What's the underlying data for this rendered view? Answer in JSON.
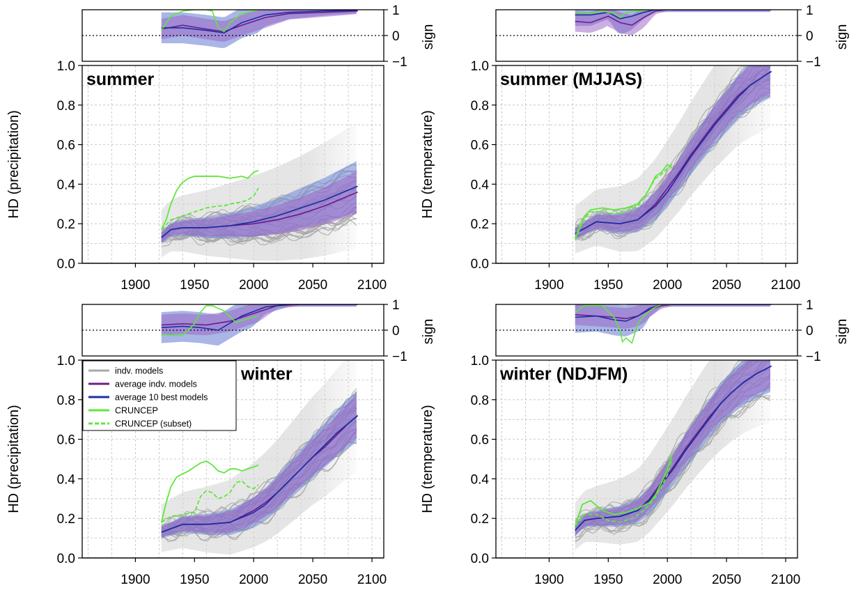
{
  "colors": {
    "indv_models": "#a8a8a8",
    "average_indv_models": "#6e1b8c",
    "average_10_best_models": "#1c2fa0",
    "cruncep": "#5ee83b",
    "band_all": "#9a5fc4",
    "band_best": "#6f86d6",
    "cloud": "#d3d3d3",
    "grid": "#bdbdbd"
  },
  "legend": {
    "items": [
      {
        "label": "indv. models",
        "series": "indv_models",
        "style": "solid"
      },
      {
        "label": "average indv. models",
        "series": "average_indv_models",
        "style": "solid"
      },
      {
        "label": "average 10 best models",
        "series": "average_10_best_models",
        "style": "solid"
      },
      {
        "label": "CRUNCEP",
        "series": "cruncep",
        "style": "solid"
      },
      {
        "label": "CRUNCEP (subset)",
        "series": "cruncep",
        "style": "dashed"
      }
    ]
  },
  "chart_data": [
    {
      "id": "summer-precipitation",
      "type": "line",
      "title": "summer",
      "ylabel": "HD (precipitation)",
      "sign_ylabel": "sign",
      "xlim": [
        1855,
        2110
      ],
      "ylim": [
        0,
        1
      ],
      "x_ticks": [
        1900,
        1950,
        2000,
        2050,
        2100
      ],
      "y_ticks": [
        0.0,
        0.2,
        0.4,
        0.6,
        0.8,
        1.0
      ],
      "y_tick_labels": [
        "0.0",
        "0.2",
        "0.4",
        "0.6",
        "0.8",
        "1.0"
      ],
      "sign_ylim": [
        -1,
        1
      ],
      "sign_ticks": [
        -1,
        0,
        1
      ],
      "sign_tick_labels": [
        "−1",
        "0",
        "1"
      ],
      "grid": true,
      "series": [
        {
          "key": "average_indv_models",
          "x": [
            1922,
            1930,
            1940,
            1960,
            1980,
            2000,
            2020,
            2040,
            2060,
            2088
          ],
          "y": [
            0.13,
            0.17,
            0.18,
            0.18,
            0.19,
            0.2,
            0.22,
            0.25,
            0.29,
            0.36
          ]
        },
        {
          "key": "average_10_best_models",
          "x": [
            1922,
            1930,
            1940,
            1960,
            1980,
            2000,
            2020,
            2040,
            2060,
            2088
          ],
          "y": [
            0.13,
            0.17,
            0.18,
            0.18,
            0.19,
            0.21,
            0.24,
            0.28,
            0.32,
            0.39
          ]
        },
        {
          "key": "cruncep",
          "x": [
            1922,
            1926,
            1930,
            1935,
            1940,
            1945,
            1950,
            1960,
            1970,
            1980,
            1990,
            1995,
            2000,
            2004
          ],
          "y": [
            0.17,
            0.22,
            0.3,
            0.37,
            0.41,
            0.43,
            0.44,
            0.44,
            0.44,
            0.43,
            0.44,
            0.43,
            0.46,
            0.47
          ]
        },
        {
          "key": "cruncep_subset",
          "x": [
            1922,
            1930,
            1940,
            1950,
            1960,
            1970,
            1975,
            1980,
            1990,
            1995,
            2000,
            2004
          ],
          "y": [
            0.17,
            0.22,
            0.24,
            0.26,
            0.28,
            0.29,
            0.29,
            0.3,
            0.31,
            0.32,
            0.34,
            0.38
          ]
        }
      ],
      "sign_series": [
        {
          "key": "average_indv_models",
          "x": [
            1922,
            1940,
            1960,
            1975,
            1990,
            2010,
            2030,
            2060,
            2088
          ],
          "y": [
            0.25,
            0.4,
            0.25,
            0.15,
            0.4,
            0.7,
            0.85,
            0.9,
            0.95
          ]
        },
        {
          "key": "average_10_best_models",
          "x": [
            1922,
            1940,
            1960,
            1975,
            1990,
            2010,
            2030,
            2060,
            2088
          ],
          "y": [
            0.3,
            0.3,
            0.2,
            0.1,
            0.5,
            0.8,
            0.9,
            0.95,
            0.98
          ]
        },
        {
          "key": "cruncep",
          "x": [
            1922,
            1930,
            1940,
            1950,
            1960,
            1965,
            1970,
            1975,
            1980,
            1990,
            2000,
            2004
          ],
          "y": [
            0.2,
            0.75,
            0.95,
            1.0,
            1.0,
            0.95,
            0.3,
            0.15,
            0.5,
            0.85,
            0.95,
            1.0
          ]
        }
      ]
    },
    {
      "id": "summer-temperature",
      "type": "line",
      "title": "summer (MJJAS)",
      "ylabel": "HD (temperature)",
      "sign_ylabel": "sign",
      "xlim": [
        1855,
        2110
      ],
      "ylim": [
        0,
        1
      ],
      "x_ticks": [
        1900,
        1950,
        2000,
        2050,
        2100
      ],
      "y_ticks": [
        0.0,
        0.2,
        0.4,
        0.6,
        0.8,
        1.0
      ],
      "y_tick_labels": [
        "0.0",
        "0.2",
        "0.4",
        "0.6",
        "0.8",
        "1.0"
      ],
      "sign_ylim": [
        -1,
        1
      ],
      "sign_ticks": [
        -1,
        0,
        1
      ],
      "sign_tick_labels": [
        "−1",
        "0",
        "1"
      ],
      "grid": true,
      "series": [
        {
          "key": "average_indv_models",
          "x": [
            1922,
            1940,
            1960,
            1975,
            1990,
            2000,
            2010,
            2020,
            2030,
            2040,
            2050,
            2060,
            2070,
            2080,
            2088
          ],
          "y": [
            0.15,
            0.21,
            0.2,
            0.22,
            0.3,
            0.38,
            0.46,
            0.55,
            0.63,
            0.71,
            0.78,
            0.85,
            0.9,
            0.94,
            0.97
          ]
        },
        {
          "key": "average_10_best_models",
          "x": [
            1922,
            1940,
            1960,
            1975,
            1990,
            2000,
            2010,
            2020,
            2030,
            2040,
            2050,
            2060,
            2070,
            2080,
            2088
          ],
          "y": [
            0.15,
            0.21,
            0.2,
            0.22,
            0.29,
            0.36,
            0.45,
            0.54,
            0.62,
            0.7,
            0.77,
            0.84,
            0.9,
            0.94,
            0.97
          ]
        },
        {
          "key": "cruncep",
          "x": [
            1922,
            1930,
            1935,
            1945,
            1955,
            1965,
            1975,
            1980,
            1985,
            1990,
            1995,
            2000,
            2004
          ],
          "y": [
            0.13,
            0.24,
            0.27,
            0.28,
            0.27,
            0.28,
            0.3,
            0.33,
            0.38,
            0.44,
            0.46,
            0.5,
            0.48
          ]
        },
        {
          "key": "cruncep_subset",
          "x": [
            1922,
            1930,
            1935,
            1945,
            1955,
            1965,
            1975,
            1980,
            1985,
            1990,
            1995,
            2000,
            2004
          ],
          "y": [
            0.12,
            0.23,
            0.26,
            0.26,
            0.25,
            0.26,
            0.29,
            0.33,
            0.38,
            0.43,
            0.45,
            0.48,
            0.5
          ]
        }
      ],
      "sign_series": [
        {
          "key": "average_indv_models",
          "x": [
            1922,
            1935,
            1950,
            1960,
            1970,
            1980,
            1990,
            2000,
            2030,
            2088
          ],
          "y": [
            0.55,
            0.5,
            0.75,
            0.5,
            0.4,
            0.7,
            0.95,
            1.0,
            1.0,
            1.0
          ]
        },
        {
          "key": "average_10_best_models",
          "x": [
            1922,
            1935,
            1950,
            1960,
            1970,
            1980,
            1990,
            2000,
            2030,
            2088
          ],
          "y": [
            0.8,
            0.8,
            0.9,
            0.65,
            0.75,
            0.9,
            1.0,
            1.0,
            1.0,
            1.0
          ]
        },
        {
          "key": "cruncep",
          "x": [
            1922,
            1935,
            1945,
            1955,
            1960,
            1965,
            1975,
            1985,
            2000,
            2004
          ],
          "y": [
            0.9,
            0.85,
            0.95,
            0.85,
            0.7,
            0.9,
            0.95,
            1.0,
            1.0,
            1.0
          ]
        }
      ]
    },
    {
      "id": "winter-precipitation",
      "type": "line",
      "title": "winter",
      "ylabel": "HD (precipitation)",
      "sign_ylabel": "sign",
      "xlim": [
        1855,
        2110
      ],
      "ylim": [
        0,
        1
      ],
      "x_ticks": [
        1900,
        1950,
        2000,
        2050,
        2100
      ],
      "y_ticks": [
        0.0,
        0.2,
        0.4,
        0.6,
        0.8,
        1.0
      ],
      "y_tick_labels": [
        "0.0",
        "0.2",
        "0.4",
        "0.6",
        "0.8",
        "1.0"
      ],
      "sign_ylim": [
        -1,
        1
      ],
      "sign_ticks": [
        -1,
        0,
        1
      ],
      "sign_tick_labels": [
        "−1",
        "0",
        "1"
      ],
      "grid": true,
      "legend_location": "top-left",
      "series": [
        {
          "key": "average_indv_models",
          "x": [
            1922,
            1940,
            1960,
            1980,
            2000,
            2010,
            2020,
            2030,
            2040,
            2050,
            2060,
            2070,
            2080,
            2088
          ],
          "y": [
            0.13,
            0.17,
            0.17,
            0.18,
            0.24,
            0.28,
            0.33,
            0.39,
            0.45,
            0.51,
            0.56,
            0.62,
            0.68,
            0.72
          ]
        },
        {
          "key": "average_10_best_models",
          "x": [
            1922,
            1940,
            1960,
            1980,
            2000,
            2010,
            2020,
            2030,
            2040,
            2050,
            2060,
            2070,
            2080,
            2088
          ],
          "y": [
            0.13,
            0.17,
            0.17,
            0.18,
            0.23,
            0.27,
            0.33,
            0.39,
            0.45,
            0.51,
            0.57,
            0.63,
            0.68,
            0.72
          ]
        },
        {
          "key": "cruncep",
          "x": [
            1922,
            1926,
            1930,
            1935,
            1945,
            1955,
            1960,
            1965,
            1970,
            1975,
            1980,
            1985,
            1990,
            1995,
            2000,
            2004
          ],
          "y": [
            0.18,
            0.28,
            0.36,
            0.41,
            0.44,
            0.48,
            0.49,
            0.47,
            0.44,
            0.43,
            0.45,
            0.45,
            0.44,
            0.45,
            0.46,
            0.47
          ]
        },
        {
          "key": "cruncep_subset",
          "x": [
            1922,
            1930,
            1940,
            1950,
            1955,
            1960,
            1965,
            1970,
            1975,
            1980,
            1985,
            1990,
            1995,
            2000,
            2004
          ],
          "y": [
            0.18,
            0.21,
            0.22,
            0.23,
            0.31,
            0.34,
            0.33,
            0.3,
            0.31,
            0.33,
            0.38,
            0.39,
            0.36,
            0.35,
            0.37
          ]
        }
      ],
      "sign_series": [
        {
          "key": "average_indv_models",
          "x": [
            1922,
            1940,
            1960,
            1980,
            2000,
            2020,
            2040,
            2060,
            2088
          ],
          "y": [
            0.2,
            0.25,
            0.2,
            0.35,
            0.65,
            0.95,
            1.0,
            1.0,
            1.0
          ]
        },
        {
          "key": "average_10_best_models",
          "x": [
            1922,
            1940,
            1955,
            1970,
            1990,
            2010,
            2030,
            2060,
            2088
          ],
          "y": [
            0.1,
            0.15,
            0.1,
            0.0,
            0.55,
            0.9,
            1.0,
            1.0,
            1.0
          ]
        },
        {
          "key": "cruncep",
          "x": [
            1922,
            1930,
            1940,
            1950,
            1955,
            1960,
            1965,
            1975,
            1985,
            1995,
            2004
          ],
          "y": [
            -0.15,
            -0.2,
            -0.2,
            0.25,
            0.7,
            0.95,
            0.95,
            0.75,
            0.3,
            0.45,
            0.55
          ]
        }
      ]
    },
    {
      "id": "winter-temperature",
      "type": "line",
      "title": "winter (NDJFM)",
      "ylabel": "HD (temperature)",
      "sign_ylabel": "sign",
      "xlim": [
        1855,
        2110
      ],
      "ylim": [
        0,
        1
      ],
      "x_ticks": [
        1900,
        1950,
        2000,
        2050,
        2100
      ],
      "y_ticks": [
        0.0,
        0.2,
        0.4,
        0.6,
        0.8,
        1.0
      ],
      "y_tick_labels": [
        "0.0",
        "0.2",
        "0.4",
        "0.6",
        "0.8",
        "1.0"
      ],
      "sign_ylim": [
        -1,
        1
      ],
      "sign_ticks": [
        -1,
        0,
        1
      ],
      "sign_tick_labels": [
        "−1",
        "0",
        "1"
      ],
      "grid": true,
      "series": [
        {
          "key": "average_indv_models",
          "x": [
            1922,
            1930,
            1940,
            1960,
            1975,
            1985,
            1995,
            2005,
            2015,
            2025,
            2035,
            2045,
            2055,
            2065,
            2075,
            2088
          ],
          "y": [
            0.14,
            0.19,
            0.2,
            0.21,
            0.24,
            0.3,
            0.38,
            0.46,
            0.55,
            0.63,
            0.71,
            0.78,
            0.84,
            0.89,
            0.93,
            0.97
          ]
        },
        {
          "key": "average_10_best_models",
          "x": [
            1922,
            1930,
            1940,
            1960,
            1975,
            1985,
            1995,
            2005,
            2015,
            2025,
            2035,
            2045,
            2055,
            2065,
            2075,
            2088
          ],
          "y": [
            0.14,
            0.19,
            0.2,
            0.21,
            0.24,
            0.29,
            0.37,
            0.45,
            0.54,
            0.62,
            0.7,
            0.78,
            0.84,
            0.89,
            0.93,
            0.97
          ]
        },
        {
          "key": "cruncep",
          "x": [
            1922,
            1928,
            1935,
            1945,
            1955,
            1965,
            1975,
            1985,
            1990,
            1995,
            2000,
            2004
          ],
          "y": [
            0.16,
            0.27,
            0.29,
            0.24,
            0.22,
            0.23,
            0.25,
            0.28,
            0.32,
            0.38,
            0.45,
            0.52
          ]
        },
        {
          "key": "cruncep_subset",
          "x": [
            1922,
            1930,
            1940,
            1950,
            1960,
            1970,
            1980,
            1985,
            1990,
            1995,
            2000,
            2004
          ],
          "y": [
            0.16,
            0.22,
            0.22,
            0.19,
            0.18,
            0.2,
            0.24,
            0.27,
            0.31,
            0.36,
            0.42,
            0.5
          ]
        }
      ],
      "sign_series": [
        {
          "key": "average_indv_models",
          "x": [
            1922,
            1940,
            1955,
            1965,
            1975,
            1985,
            1995,
            2005,
            2030,
            2088
          ],
          "y": [
            0.6,
            0.55,
            0.5,
            0.45,
            0.55,
            0.8,
            0.95,
            1.0,
            1.0,
            1.0
          ]
        },
        {
          "key": "average_10_best_models",
          "x": [
            1922,
            1940,
            1955,
            1965,
            1975,
            1985,
            1995,
            2005,
            2030,
            2088
          ],
          "y": [
            0.5,
            0.55,
            0.4,
            0.35,
            0.55,
            0.85,
            1.0,
            1.0,
            1.0,
            1.0
          ]
        },
        {
          "key": "cruncep",
          "x": [
            1922,
            1930,
            1945,
            1955,
            1960,
            1962,
            1965,
            1970,
            1975,
            1980,
            1985,
            1990,
            1995,
            2004
          ],
          "y": [
            0.7,
            0.95,
            0.95,
            0.5,
            0.0,
            -0.45,
            -0.3,
            -0.5,
            0.25,
            0.55,
            0.75,
            0.9,
            1.0,
            1.0
          ]
        }
      ]
    }
  ]
}
